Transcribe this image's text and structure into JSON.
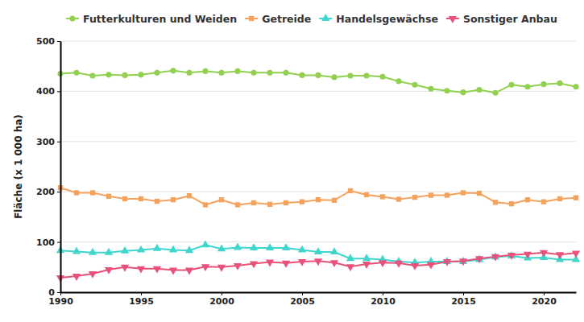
{
  "chart_data": {
    "type": "line",
    "y_label": "Fläche (x 1 000 ha)",
    "x": [
      1990,
      1991,
      1992,
      1993,
      1994,
      1995,
      1996,
      1997,
      1998,
      1999,
      2000,
      2001,
      2002,
      2003,
      2004,
      2005,
      2006,
      2007,
      2008,
      2009,
      2010,
      2011,
      2012,
      2013,
      2014,
      2015,
      2016,
      2017,
      2018,
      2019,
      2020,
      2021,
      2022
    ],
    "series": [
      {
        "name": "Futterkulturen und Weiden",
        "color": "#92d050",
        "marker": "circle",
        "values": [
          435,
          437,
          431,
          433,
          432,
          433,
          437,
          441,
          437,
          440,
          437,
          440,
          437,
          437,
          437,
          432,
          432,
          428,
          431,
          431,
          429,
          420,
          413,
          405,
          401,
          398,
          403,
          397,
          413,
          409,
          414,
          416,
          409
        ]
      },
      {
        "name": "Getreide",
        "color": "#f5a25d",
        "marker": "square",
        "values": [
          208,
          198,
          198,
          191,
          186,
          186,
          181,
          184,
          192,
          174,
          184,
          174,
          178,
          175,
          178,
          180,
          184,
          183,
          202,
          194,
          190,
          185,
          189,
          193,
          193,
          198,
          197,
          179,
          176,
          184,
          180,
          186,
          188
        ]
      },
      {
        "name": "Handelsgewächse",
        "color": "#3fd6cd",
        "marker": "triangle",
        "values": [
          83,
          81,
          79,
          79,
          82,
          84,
          87,
          84,
          83,
          94,
          86,
          89,
          88,
          88,
          88,
          84,
          80,
          80,
          67,
          67,
          65,
          61,
          59,
          61,
          61,
          61,
          65,
          70,
          72,
          68,
          69,
          65,
          65
        ]
      },
      {
        "name": "Sonstiger Anbau",
        "color": "#e8517a",
        "marker": "triangle-down",
        "values": [
          29,
          32,
          37,
          45,
          50,
          47,
          47,
          44,
          44,
          51,
          50,
          53,
          57,
          60,
          58,
          61,
          62,
          59,
          51,
          56,
          59,
          58,
          53,
          55,
          61,
          62,
          67,
          71,
          74,
          76,
          79,
          75,
          78
        ]
      }
    ],
    "xlim": [
      1990,
      2022
    ],
    "xticks": [
      1990,
      1995,
      2000,
      2005,
      2010,
      2015,
      2020
    ],
    "ylim": [
      0,
      500
    ],
    "yticks": [
      0,
      100,
      200,
      300,
      400,
      500
    ],
    "grid": true,
    "legend": "top"
  }
}
